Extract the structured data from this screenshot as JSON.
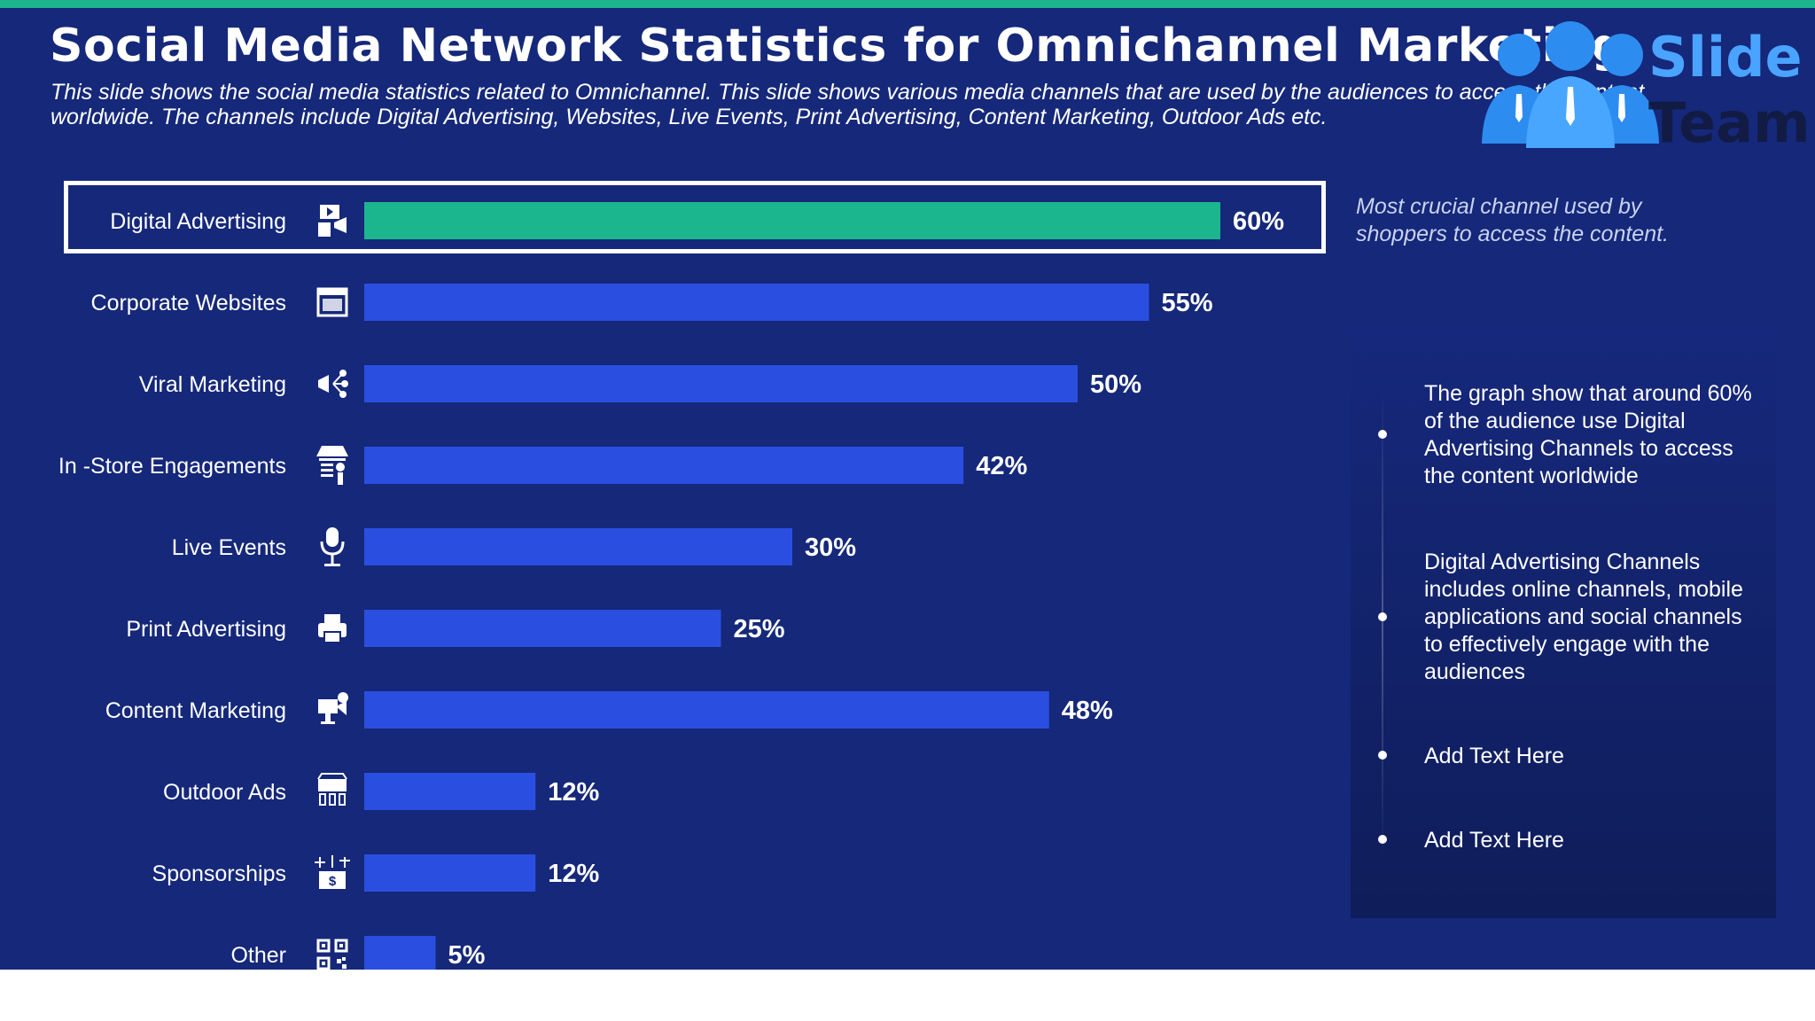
{
  "title": "Social Media Network Statistics for Omnichannel Marketing",
  "subtitle": "This slide shows the social media statistics related to Omnichannel. This slide shows various media channels that are used by the audiences to access the content worldwide. The channels include Digital Advertising, Websites, Live Events, Print Advertising, Content Marketing, Outdoor Ads etc.",
  "logo": {
    "line1": "Slide",
    "line2": "Team"
  },
  "highlight_note": "Most crucial channel used by shoppers to access the content.",
  "bullets": [
    "The graph show that around 60% of the audience use Digital Advertising Channels to access the content worldwide",
    "Digital Advertising Channels includes online channels, mobile applications and social channels to effectively engage with the audiences",
    "Add Text Here",
    "Add Text Here"
  ],
  "colors": {
    "background": "#15287a",
    "accent": "#1bb58e",
    "bar": "#2a4fe0",
    "highlight_bar": "#1bb58e",
    "text": "#ffffff"
  },
  "chart_data": {
    "type": "bar",
    "orientation": "horizontal",
    "categories": [
      "Digital Advertising",
      "Corporate Websites",
      "Viral Marketing",
      "In -Store Engagements",
      "Live Events",
      "Print Advertising",
      "Content Marketing",
      "Outdoor Ads",
      "Sponsorships",
      "Other"
    ],
    "values": [
      60,
      55,
      50,
      42,
      30,
      25,
      48,
      12,
      12,
      5
    ],
    "labels": [
      "60%",
      "55%",
      "50%",
      "42%",
      "30%",
      "25%",
      "48%",
      "12%",
      "12%",
      "5%"
    ],
    "unit": "%",
    "highlight_index": 0,
    "icons": [
      "digital-ad-icon",
      "website-icon",
      "megaphone-share-icon",
      "storefront-icon",
      "microphone-icon",
      "printer-icon",
      "content-marketing-icon",
      "billboard-icon",
      "sponsorship-icon",
      "qr-code-icon"
    ],
    "xlim": [
      0,
      100
    ],
    "grid": false,
    "legend": "none"
  }
}
